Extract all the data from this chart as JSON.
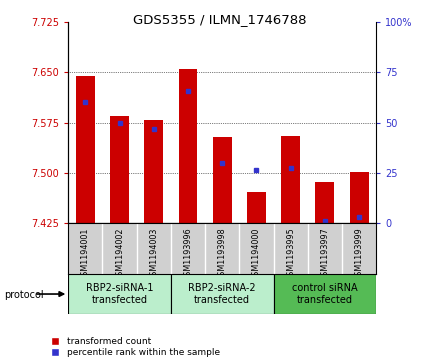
{
  "title": "GDS5355 / ILMN_1746788",
  "samples": [
    "GSM1194001",
    "GSM1194002",
    "GSM1194003",
    "GSM1193996",
    "GSM1193998",
    "GSM1194000",
    "GSM1193995",
    "GSM1193997",
    "GSM1193999"
  ],
  "red_values": [
    7.645,
    7.585,
    7.578,
    7.655,
    7.553,
    7.472,
    7.555,
    7.487,
    7.502
  ],
  "blue_values": [
    7.605,
    7.575,
    7.565,
    7.622,
    7.515,
    7.505,
    7.508,
    7.428,
    7.435
  ],
  "y_min": 7.425,
  "y_max": 7.725,
  "y_ticks": [
    7.425,
    7.5,
    7.575,
    7.65,
    7.725
  ],
  "right_y_ticks": [
    0,
    25,
    50,
    75,
    100
  ],
  "bar_color": "#cc0000",
  "blue_color": "#3333cc",
  "bar_width": 0.55,
  "background_color": "#ffffff",
  "grid_color": "#000000",
  "tick_color_left": "#cc0000",
  "tick_color_right": "#3333cc",
  "sample_bg": "#d0d0d0",
  "group_colors": [
    "#bbeecc",
    "#bbeecc",
    "#55bb55"
  ],
  "group_labels": [
    "RBP2-siRNA-1\ntransfected",
    "RBP2-siRNA-2\ntransfected",
    "control siRNA\ntransfected"
  ],
  "group_starts": [
    0,
    3,
    6
  ],
  "group_ends": [
    2,
    5,
    8
  ]
}
